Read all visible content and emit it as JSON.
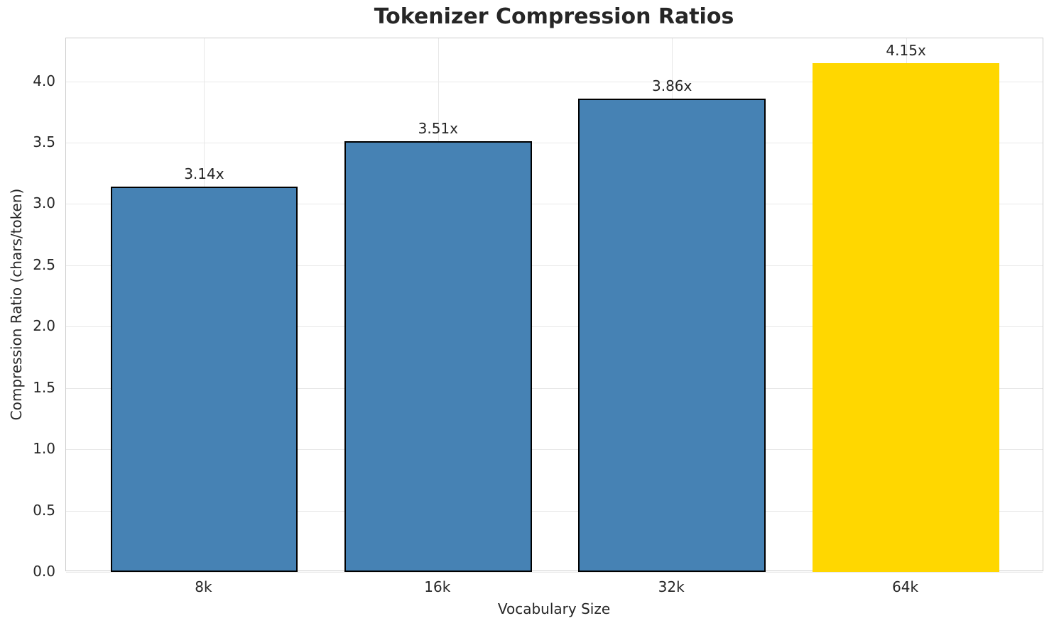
{
  "chart_data": {
    "type": "bar",
    "title": "Tokenizer Compression Ratios",
    "xlabel": "Vocabulary Size",
    "ylabel": "Compression Ratio (chars/token)",
    "categories": [
      "8k",
      "16k",
      "32k",
      "64k"
    ],
    "values": [
      3.14,
      3.51,
      3.86,
      4.15
    ],
    "value_labels": [
      "3.14x",
      "3.51x",
      "3.86x",
      "4.15x"
    ],
    "bar_colors": [
      "#4682b4",
      "#4682b4",
      "#4682b4",
      "#ffd700"
    ],
    "bar_edge_colors": [
      "#000000",
      "#000000",
      "#000000",
      "none"
    ],
    "yticks": [
      0.0,
      0.5,
      1.0,
      1.5,
      2.0,
      2.5,
      3.0,
      3.5,
      4.0
    ],
    "ytick_labels": [
      "0.0",
      "0.5",
      "1.0",
      "1.5",
      "2.0",
      "2.5",
      "3.0",
      "3.5",
      "4.0"
    ],
    "ylim": [
      0,
      4.35
    ],
    "xlim": [
      -0.59,
      3.59
    ],
    "bar_width": 0.8,
    "grid": true,
    "legend": "none",
    "colors": {
      "background": "#ffffff",
      "spine": "#cccccc",
      "gridline": "#e8e8e8",
      "text": "#262626",
      "highlight_bar": "#ffd700",
      "default_bar": "#4682b4"
    }
  }
}
